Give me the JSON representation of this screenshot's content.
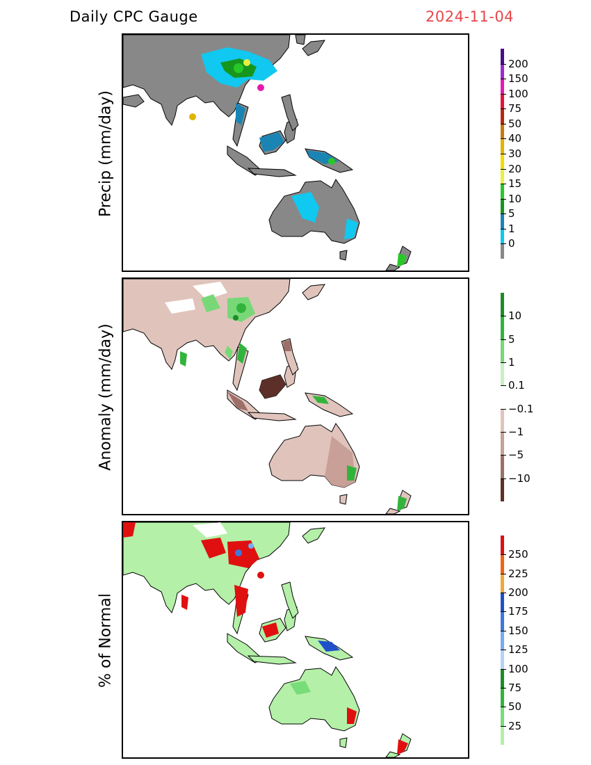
{
  "title": "Daily CPC Gauge",
  "date": "2024-11-04",
  "colors": {
    "date_text": "#e8454a",
    "ocean": "#ffffff",
    "coast": "#000000"
  },
  "panels": [
    {
      "id": "precip",
      "ylabel": "Precip (mm/day)",
      "colorbar": {
        "labels": [
          "200",
          "150",
          "100",
          "75",
          "50",
          "40",
          "30",
          "20",
          "15",
          "10",
          "5",
          "1",
          "0"
        ],
        "colors": [
          "#4b0c8c",
          "#9b2bd0",
          "#e51bb0",
          "#e8123a",
          "#b8280e",
          "#c87810",
          "#e0b400",
          "#f0dc00",
          "#e8f040",
          "#28c828",
          "#17961e",
          "#1a84b4",
          "#10c8f0",
          "#888888"
        ]
      }
    },
    {
      "id": "anomaly",
      "ylabel": "Anomaly (mm/day)",
      "colorbar": {
        "labels": [
          "10",
          "5",
          "1",
          "0.1",
          "−0.1",
          "−1",
          "−5",
          "−10"
        ],
        "colors": [
          "#1e8c28",
          "#32b43c",
          "#78d878",
          "#c8f0c0",
          "#ffffff",
          "#e0c4bc",
          "#c8a098",
          "#9c7068",
          "#5c3028"
        ]
      }
    },
    {
      "id": "percent",
      "ylabel": "% of Normal",
      "colorbar": {
        "labels": [
          "250",
          "225",
          "200",
          "175",
          "150",
          "125",
          "100",
          "75",
          "50",
          "25"
        ],
        "colors": [
          "#e01010",
          "#f06414",
          "#f0a83c",
          "#2050c8",
          "#3c78dc",
          "#78aaf0",
          "#b4d2f8",
          "#1e8c28",
          "#32b43c",
          "#78dc78",
          "#b4f0a8"
        ]
      }
    }
  ]
}
